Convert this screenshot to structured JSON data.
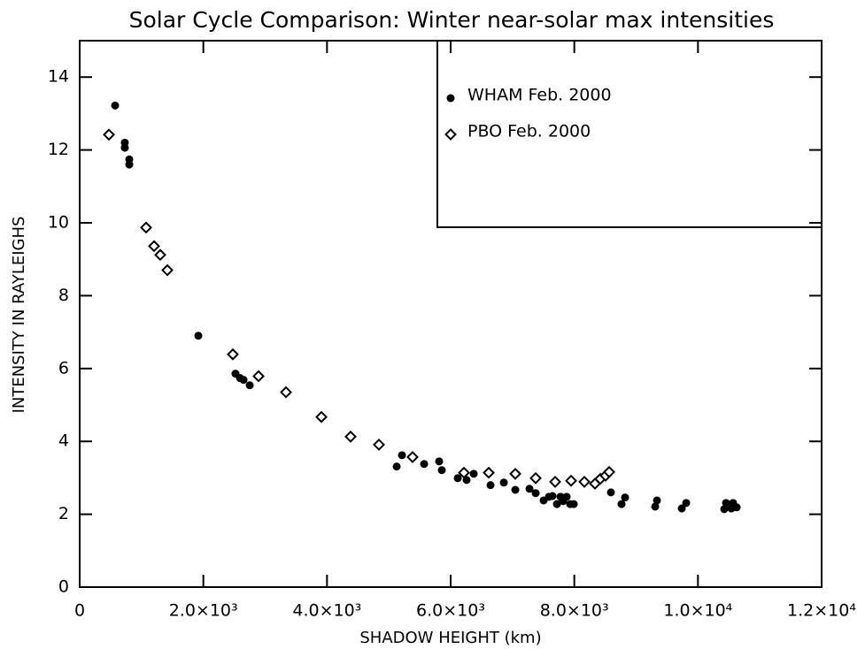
{
  "chart_data": {
    "type": "scatter",
    "title": "Solar Cycle Comparison: Winter near-solar max intensities",
    "x_label": "SHADOW HEIGHT  (km)",
    "y_label": "INTENSITY IN RAYLEIGHS",
    "xlim": [
      0,
      12000
    ],
    "ylim": [
      0,
      15
    ],
    "xticks": [
      0,
      {
        "value": 2000,
        "label": "2.0×10³"
      },
      {
        "value": 4000,
        "label": "4.0×10³"
      },
      {
        "value": 6000,
        "label": "6.0×10³"
      },
      {
        "value": 8000,
        "label": "8.0×10³"
      },
      {
        "value": 10000,
        "label": "1.0×10⁴"
      },
      {
        "value": 12000,
        "label": "1.2×10⁴"
      }
    ],
    "yticks": [
      0,
      2,
      4,
      6,
      8,
      10,
      12,
      14
    ],
    "legend": "upper right",
    "series": [
      {
        "name": "WHAM Feb. 2000",
        "marker": "circle",
        "color": "#000000",
        "x": [
          573,
          730,
          730,
          802,
          802,
          1919,
          2520,
          2592,
          2650,
          2750,
          5127,
          5213,
          5571,
          5814,
          5857,
          6115,
          6258,
          6373,
          6645,
          6860,
          7046,
          7275,
          7375,
          7504,
          7590,
          7647,
          7719,
          7776,
          7819,
          7876,
          7934,
          7991,
          8592,
          8764,
          8821,
          9308,
          9337,
          9738,
          9809,
          10425,
          10454,
          10540,
          10568,
          10626
        ],
        "values": [
          13.22,
          12.2,
          12.06,
          11.74,
          11.6,
          6.9,
          5.86,
          5.74,
          5.69,
          5.54,
          3.31,
          3.62,
          3.38,
          3.45,
          3.21,
          2.99,
          2.94,
          3.11,
          2.8,
          2.87,
          2.67,
          2.7,
          2.58,
          2.38,
          2.48,
          2.5,
          2.28,
          2.48,
          2.36,
          2.48,
          2.28,
          2.28,
          2.6,
          2.28,
          2.46,
          2.21,
          2.38,
          2.16,
          2.31,
          2.14,
          2.31,
          2.16,
          2.31,
          2.19
        ]
      },
      {
        "name": "PBO Feb. 2000",
        "marker": "diamond",
        "color": "#000000",
        "x": [
          473,
          1074,
          1203,
          1303,
          1418,
          2477,
          2893,
          3337,
          3910,
          4382,
          4840,
          5384,
          6215,
          6616,
          7046,
          7375,
          7690,
          7948,
          8163,
          8334,
          8420,
          8506,
          8564
        ],
        "values": [
          12.42,
          9.87,
          9.36,
          9.12,
          8.7,
          6.39,
          5.79,
          5.35,
          4.67,
          4.13,
          3.91,
          3.57,
          3.14,
          3.14,
          3.11,
          2.99,
          2.89,
          2.92,
          2.89,
          2.84,
          2.97,
          3.06,
          3.16
        ]
      }
    ]
  }
}
